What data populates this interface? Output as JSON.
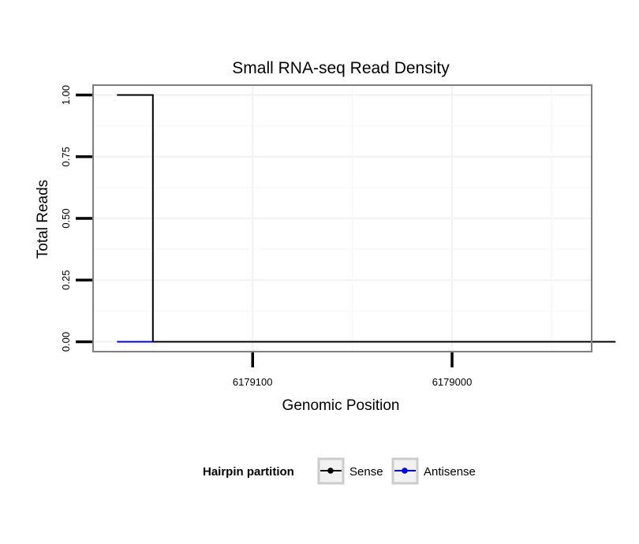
{
  "chart_data": {
    "type": "line",
    "title": "Small RNA-seq Read Density",
    "xlabel": "Genomic Position",
    "ylabel": "Total Reads",
    "x_reversed": true,
    "xlim": [
      6179180,
      6178930
    ],
    "ylim": [
      -0.04,
      1.04
    ],
    "x_ticks": [
      {
        "value": 6179100,
        "label": "6179100"
      },
      {
        "value": 6179000,
        "label": "6179000"
      }
    ],
    "y_ticks": [
      {
        "value": 0,
        "label": "0.00"
      },
      {
        "value": 0.25,
        "label": "0.25"
      },
      {
        "value": 0.5,
        "label": "0.50"
      },
      {
        "value": 0.75,
        "label": "0.75"
      },
      {
        "value": 1,
        "label": "1.00"
      }
    ],
    "grid": true,
    "series": [
      {
        "name": "Sense",
        "color": "#000000",
        "x": [
          6179168,
          6179150,
          6179150,
          6178918
        ],
        "y": [
          1,
          1,
          0,
          0
        ]
      },
      {
        "name": "Antisense",
        "color": "#0000ff",
        "x": [
          6179168,
          6179150
        ],
        "y": [
          0,
          0
        ]
      }
    ],
    "legend": {
      "title": "Hairpin partition",
      "position": "bottom",
      "entries": [
        {
          "label": "Sense",
          "color": "#000000"
        },
        {
          "label": "Antisense",
          "color": "#0000ff"
        }
      ]
    }
  }
}
